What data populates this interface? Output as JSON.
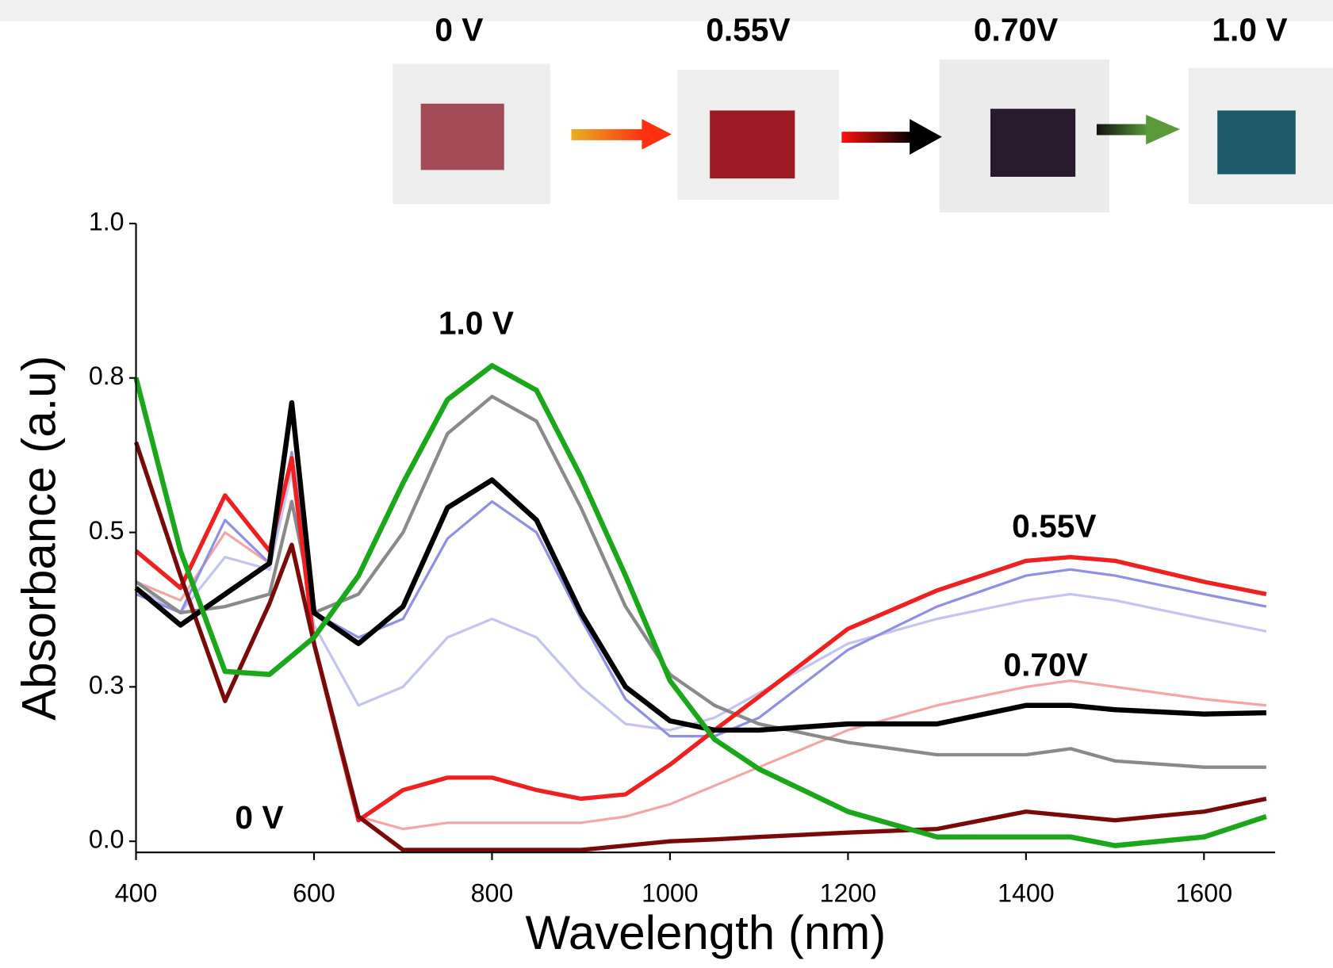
{
  "chart_data": {
    "type": "line",
    "xlabel": "Wavelength (nm)",
    "ylabel": "Absorbance (a.u)",
    "xlim": [
      400,
      1680
    ],
    "ylim": [
      -0.018,
      1.0
    ],
    "xticks": [
      400,
      600,
      800,
      1000,
      1200,
      1400,
      1600
    ],
    "yticks": [
      {
        "value": 0,
        "label": "0.0"
      },
      {
        "value": 0.25,
        "label": "0.3"
      },
      {
        "value": 0.5,
        "label": "0.5"
      },
      {
        "value": 0.75,
        "label": "0.8"
      },
      {
        "value": 1.0,
        "label": "1.0"
      }
    ],
    "grid": false,
    "annotations": [
      "1.0 V",
      "0.55V",
      "0.70V",
      "0 V"
    ],
    "photo_labels": [
      "0 V",
      "0.55V",
      "0.70V",
      "1.0 V"
    ],
    "x": [
      400,
      450,
      500,
      550,
      575,
      600,
      650,
      700,
      750,
      800,
      850,
      900,
      950,
      1000,
      1050,
      1100,
      1200,
      1300,
      1400,
      1450,
      1500,
      1600,
      1670
    ],
    "series": [
      {
        "color": "#f4a6a6",
        "width": 3,
        "values": [
          0.42,
          0.39,
          0.5,
          0.45,
          0.6,
          0.32,
          0.04,
          0.02,
          0.03,
          0.03,
          0.03,
          0.03,
          0.04,
          0.06,
          0.09,
          0.12,
          0.18,
          0.22,
          0.25,
          0.26,
          0.25,
          0.23,
          0.22
        ]
      },
      {
        "color": "#c4c4f2",
        "width": 3,
        "values": [
          0.41,
          0.37,
          0.46,
          0.44,
          0.6,
          0.35,
          0.22,
          0.25,
          0.33,
          0.36,
          0.33,
          0.25,
          0.19,
          0.18,
          0.2,
          0.24,
          0.32,
          0.36,
          0.39,
          0.4,
          0.39,
          0.36,
          0.34
        ]
      },
      {
        "color": "#8f8fe6",
        "width": 3,
        "values": [
          0.4,
          0.37,
          0.52,
          0.45,
          0.63,
          0.37,
          0.33,
          0.36,
          0.49,
          0.55,
          0.5,
          0.36,
          0.23,
          0.17,
          0.17,
          0.2,
          0.31,
          0.38,
          0.43,
          0.44,
          0.43,
          0.4,
          0.38
        ]
      },
      {
        "color": "#8a8a8a",
        "width": 4,
        "values": [
          0.42,
          0.37,
          0.38,
          0.4,
          0.55,
          0.37,
          0.4,
          0.5,
          0.66,
          0.72,
          0.68,
          0.54,
          0.38,
          0.27,
          0.22,
          0.19,
          0.16,
          0.14,
          0.14,
          0.15,
          0.13,
          0.12,
          0.12
        ]
      },
      {
        "color": "#f02020",
        "width": 5,
        "values": [
          0.47,
          0.41,
          0.56,
          0.47,
          0.62,
          0.32,
          0.034,
          0.083,
          0.103,
          0.103,
          0.083,
          0.069,
          0.076,
          0.124,
          0.18,
          0.234,
          0.344,
          0.406,
          0.454,
          0.46,
          0.454,
          0.42,
          0.4
        ]
      },
      {
        "color": "#7a0a0a",
        "width": 5,
        "values": [
          0.646,
          0.43,
          0.227,
          0.385,
          0.48,
          0.32,
          0.04,
          -0.014,
          -0.014,
          -0.014,
          -0.014,
          -0.014,
          -0.007,
          0,
          0.003,
          0.007,
          0.014,
          0.02,
          0.048,
          0.041,
          0.034,
          0.048,
          0.069
        ]
      },
      {
        "color": "#000000",
        "width": 6,
        "values": [
          0.41,
          0.35,
          0.4,
          0.45,
          0.71,
          0.37,
          0.32,
          0.38,
          0.54,
          0.585,
          0.52,
          0.37,
          0.25,
          0.195,
          0.18,
          0.18,
          0.19,
          0.19,
          0.22,
          0.22,
          0.213,
          0.206,
          0.208
        ]
      },
      {
        "color": "#1aa81a",
        "width": 6,
        "values": [
          0.75,
          0.47,
          0.275,
          0.27,
          0.3,
          0.33,
          0.43,
          0.58,
          0.715,
          0.77,
          0.73,
          0.59,
          0.43,
          0.26,
          0.165,
          0.117,
          0.048,
          0.007,
          0.007,
          0.007,
          -0.007,
          0.007,
          0.04
        ]
      }
    ]
  }
}
